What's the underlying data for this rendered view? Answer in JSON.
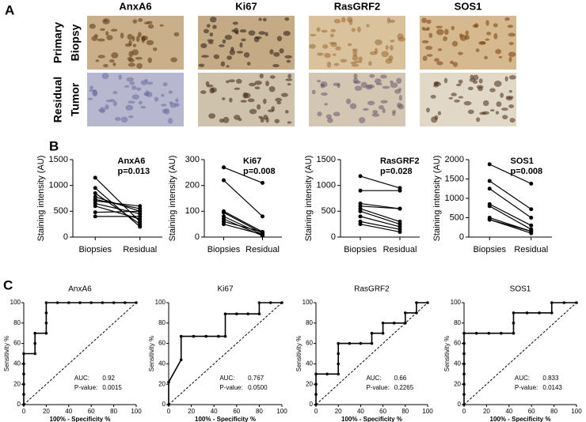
{
  "panel_labels": [
    "A",
    "B",
    "C"
  ],
  "images": {
    "columns": [
      "AnxA6",
      "Ki67",
      "RasGRF2",
      "SOS1"
    ],
    "rows": [
      [
        "Primary",
        "Biopsy"
      ],
      [
        "Residual",
        "Tumor"
      ]
    ]
  },
  "chart_data": [
    {
      "type": "slope",
      "title": "AnxA6",
      "annotation": "p=0.013",
      "ylabel": "Staining intensity (AU)",
      "categories": [
        "Biopsies",
        "Residual"
      ],
      "ylim": [
        0,
        1500
      ],
      "yticks": [
        0,
        500,
        1000,
        1500
      ],
      "color": "#000000",
      "series": [
        {
          "values": [
            1150,
            300
          ]
        },
        {
          "values": [
            950,
            200
          ]
        },
        {
          "values": [
            850,
            250
          ]
        },
        {
          "values": [
            780,
            500
          ]
        },
        {
          "values": [
            730,
            550
          ]
        },
        {
          "values": [
            700,
            600
          ]
        },
        {
          "values": [
            650,
            450
          ]
        },
        {
          "values": [
            600,
            350
          ]
        },
        {
          "values": [
            480,
            500
          ]
        },
        {
          "values": [
            400,
            400
          ]
        }
      ]
    },
    {
      "type": "slope",
      "title": "Ki67",
      "annotation": "p=0.008",
      "ylabel": "Staining intensity (AU)",
      "categories": [
        "Biopsies",
        "Residual"
      ],
      "ylim": [
        0,
        300
      ],
      "yticks": [
        0,
        100,
        200,
        300
      ],
      "color": "#000000",
      "series": [
        {
          "values": [
            270,
            210
          ]
        },
        {
          "values": [
            220,
            80
          ]
        },
        {
          "values": [
            100,
            20
          ]
        },
        {
          "values": [
            95,
            15
          ]
        },
        {
          "values": [
            80,
            10
          ]
        },
        {
          "values": [
            70,
            5
          ]
        },
        {
          "values": [
            60,
            20
          ]
        },
        {
          "values": [
            50,
            10
          ]
        }
      ]
    },
    {
      "type": "slope",
      "title": "RasGRF2",
      "annotation": "p=0.028",
      "ylabel": "Staining intensity (AU)",
      "categories": [
        "Biopsies",
        "Residual"
      ],
      "ylim": [
        0,
        1500
      ],
      "yticks": [
        0,
        500,
        1000,
        1500
      ],
      "color": "#000000",
      "series": [
        {
          "values": [
            1180,
            950
          ]
        },
        {
          "values": [
            900,
            900
          ]
        },
        {
          "values": [
            650,
            550
          ]
        },
        {
          "values": [
            600,
            550
          ]
        },
        {
          "values": [
            550,
            300
          ]
        },
        {
          "values": [
            500,
            250
          ]
        },
        {
          "values": [
            400,
            200
          ]
        },
        {
          "values": [
            300,
            150
          ]
        },
        {
          "values": [
            250,
            100
          ]
        }
      ]
    },
    {
      "type": "slope",
      "title": "SOS1",
      "annotation": "p=0.008",
      "ylabel": "Staining intensity (AU)",
      "categories": [
        "Biopsies",
        "Residual"
      ],
      "ylim": [
        0,
        2000
      ],
      "yticks": [
        0,
        500,
        1000,
        1500,
        2000
      ],
      "color": "#000000",
      "series": [
        {
          "values": [
            1880,
            1380
          ]
        },
        {
          "values": [
            1450,
            720
          ]
        },
        {
          "values": [
            1250,
            500
          ]
        },
        {
          "values": [
            850,
            300
          ]
        },
        {
          "values": [
            800,
            200
          ]
        },
        {
          "values": [
            500,
            150
          ]
        },
        {
          "values": [
            450,
            100
          ]
        },
        {
          "values": [
            450,
            150
          ]
        }
      ]
    },
    {
      "type": "line",
      "title": "AnxA6",
      "xlabel": "100% - Specificity %",
      "ylabel": "Sensitivity %",
      "annotations": [
        "AUC:",
        "0.92",
        "P-value:",
        "0.0015"
      ],
      "xlim": [
        0,
        100
      ],
      "ylim": [
        0,
        100
      ],
      "xticks": [
        0,
        20,
        40,
        60,
        80,
        100
      ],
      "yticks": [
        0,
        20,
        40,
        60,
        80,
        100
      ],
      "color": "#000000",
      "x": [
        0,
        0,
        0,
        0,
        0,
        0,
        10,
        10,
        10,
        20,
        20,
        20,
        20,
        30,
        40,
        50,
        60,
        70,
        80,
        90,
        100
      ],
      "series": [
        {
          "values": [
            0,
            10,
            20,
            30,
            40,
            50,
            50,
            60,
            70,
            70,
            80,
            90,
            100,
            100,
            100,
            100,
            100,
            100,
            100,
            100,
            100
          ]
        }
      ]
    },
    {
      "type": "line",
      "title": "Ki67",
      "xlabel": "100% - Specificity %",
      "ylabel": "Sensitivity %",
      "annotations": [
        "AUC:",
        "0.767",
        "P-value:",
        "0.0500"
      ],
      "xlim": [
        0,
        100
      ],
      "ylim": [
        0,
        100
      ],
      "xticks": [
        0,
        20,
        40,
        60,
        80,
        100
      ],
      "yticks": [
        0,
        20,
        40,
        60,
        80,
        100
      ],
      "color": "#000000",
      "x": [
        0,
        0,
        11,
        11,
        22,
        33,
        44,
        50,
        50,
        60,
        70,
        80,
        80,
        90,
        100
      ],
      "series": [
        {
          "values": [
            0,
            22,
            44,
            67,
            67,
            67,
            67,
            67,
            89,
            89,
            89,
            89,
            100,
            100,
            100
          ]
        }
      ]
    },
    {
      "type": "line",
      "title": "RasGRF2",
      "xlabel": "100% - Specificity %",
      "ylabel": "Sensitivity %",
      "annotations": [
        "AUC:",
        "0.66",
        "P-value:",
        "0.2265"
      ],
      "xlim": [
        0,
        100
      ],
      "ylim": [
        0,
        100
      ],
      "xticks": [
        0,
        20,
        40,
        60,
        80,
        100
      ],
      "yticks": [
        0,
        20,
        40,
        60,
        80,
        100
      ],
      "color": "#000000",
      "x": [
        0,
        0,
        0,
        0,
        10,
        20,
        20,
        20,
        20,
        30,
        40,
        50,
        50,
        60,
        60,
        70,
        80,
        80,
        90,
        90,
        100
      ],
      "series": [
        {
          "values": [
            0,
            10,
            20,
            30,
            30,
            30,
            40,
            50,
            60,
            60,
            60,
            60,
            70,
            70,
            80,
            80,
            80,
            90,
            90,
            100,
            100
          ]
        }
      ]
    },
    {
      "type": "line",
      "title": "SOS1",
      "xlabel": "100% - Specificity %",
      "ylabel": "Sensitivity %",
      "annotations": [
        "AUC:",
        "0.833",
        "P-value:",
        "0.0143"
      ],
      "xlim": [
        0,
        100
      ],
      "ylim": [
        0,
        100
      ],
      "xticks": [
        0,
        20,
        40,
        60,
        80,
        100
      ],
      "yticks": [
        0,
        20,
        40,
        60,
        80,
        100
      ],
      "color": "#000000",
      "x": [
        0,
        0,
        0,
        0,
        0,
        0,
        0,
        0,
        11,
        22,
        33,
        44,
        44,
        44,
        56,
        67,
        78,
        78,
        89,
        100
      ],
      "series": [
        {
          "values": [
            0,
            10,
            20,
            30,
            40,
            50,
            60,
            70,
            70,
            70,
            70,
            70,
            80,
            90,
            90,
            90,
            90,
            100,
            100,
            100
          ]
        }
      ]
    }
  ]
}
